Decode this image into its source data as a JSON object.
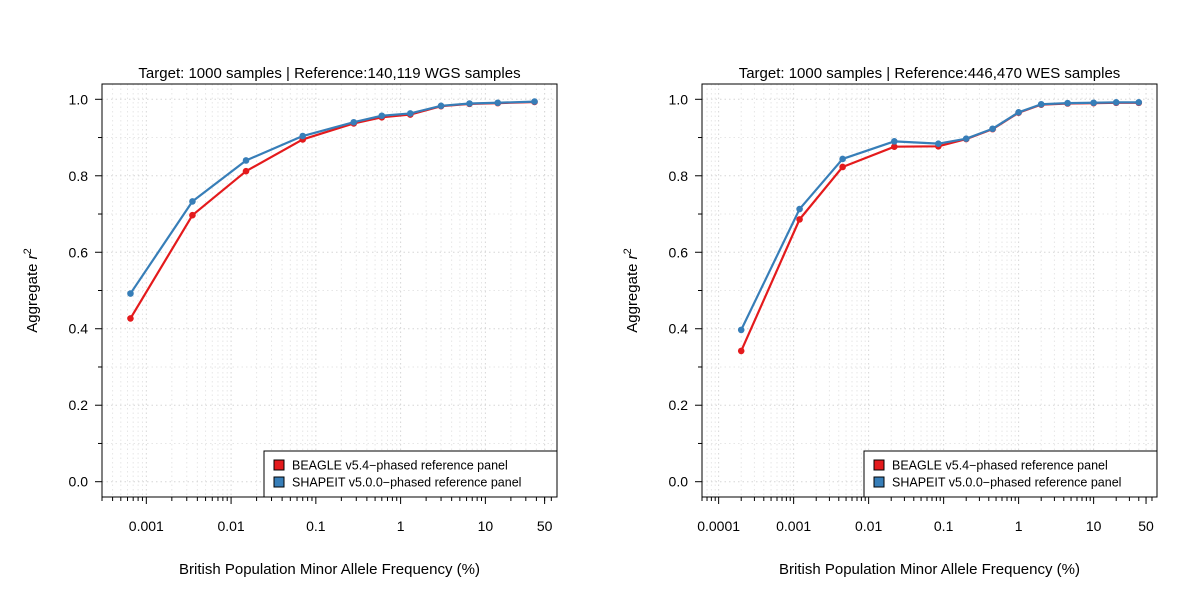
{
  "chart_data": [
    {
      "type": "line",
      "title": "Target: 1000 samples | Reference:140,119 WGS samples",
      "xlabel": "British Population Minor Allele Frequency (%)",
      "ylabel_prefix": "Aggregate ",
      "ylabel_var": "r",
      "ylabel_sup": "2",
      "xscale": "log",
      "xlim": [
        0.0003,
        70
      ],
      "ylim": [
        -0.04,
        1.04
      ],
      "xticks": [
        0.001,
        0.01,
        0.1,
        1,
        10,
        50
      ],
      "xtick_labels": [
        "0.001",
        "0.01",
        "0.1",
        "1",
        "10",
        "50"
      ],
      "yticks": [
        0.0,
        0.2,
        0.4,
        0.6,
        0.8,
        1.0
      ],
      "ytick_labels": [
        "0.0",
        "0.2",
        "0.4",
        "0.6",
        "0.8",
        "1.0"
      ],
      "grid": true,
      "legend_position": "bottom-right",
      "series": [
        {
          "name": "BEAGLE v5.4−phased reference panel",
          "color": "#e41a1c",
          "x": [
            0.00065,
            0.0035,
            0.015,
            0.07,
            0.28,
            0.6,
            1.3,
            3.0,
            6.5,
            14,
            38
          ],
          "y": [
            0.427,
            0.697,
            0.812,
            0.895,
            0.937,
            0.953,
            0.96,
            0.982,
            0.988,
            0.99,
            0.993
          ]
        },
        {
          "name": "SHAPEIT v5.0.0−phased reference panel",
          "color": "#377eb8",
          "x": [
            0.00065,
            0.0035,
            0.015,
            0.07,
            0.28,
            0.6,
            1.3,
            3.0,
            6.5,
            14,
            38
          ],
          "y": [
            0.492,
            0.733,
            0.84,
            0.904,
            0.94,
            0.957,
            0.963,
            0.983,
            0.989,
            0.991,
            0.994
          ]
        }
      ]
    },
    {
      "type": "line",
      "title": "Target: 1000 samples | Reference:446,470 WES samples",
      "xlabel": "British Population Minor Allele Frequency (%)",
      "ylabel_prefix": "Aggregate ",
      "ylabel_var": "r",
      "ylabel_sup": "2",
      "xscale": "log",
      "xlim": [
        6e-05,
        70
      ],
      "ylim": [
        -0.04,
        1.04
      ],
      "xticks": [
        0.0001,
        0.001,
        0.01,
        0.1,
        1,
        10,
        50
      ],
      "xtick_labels": [
        "0.0001",
        "0.001",
        "0.01",
        "0.1",
        "1",
        "10",
        "50"
      ],
      "yticks": [
        0.0,
        0.2,
        0.4,
        0.6,
        0.8,
        1.0
      ],
      "ytick_labels": [
        "0.0",
        "0.2",
        "0.4",
        "0.6",
        "0.8",
        "1.0"
      ],
      "grid": true,
      "legend_position": "bottom-right",
      "series": [
        {
          "name": "BEAGLE v5.4−phased reference panel",
          "color": "#e41a1c",
          "x": [
            0.0002,
            0.0012,
            0.0045,
            0.022,
            0.085,
            0.2,
            0.45,
            1.0,
            2.0,
            4.5,
            10,
            20,
            40
          ],
          "y": [
            0.342,
            0.686,
            0.823,
            0.876,
            0.877,
            0.896,
            0.922,
            0.965,
            0.986,
            0.989,
            0.99,
            0.991,
            0.991
          ]
        },
        {
          "name": "SHAPEIT v5.0.0−phased reference panel",
          "color": "#377eb8",
          "x": [
            0.0002,
            0.0012,
            0.0045,
            0.022,
            0.085,
            0.2,
            0.45,
            1.0,
            2.0,
            4.5,
            10,
            20,
            40
          ],
          "y": [
            0.397,
            0.713,
            0.844,
            0.89,
            0.884,
            0.897,
            0.923,
            0.966,
            0.987,
            0.99,
            0.991,
            0.992,
            0.992
          ]
        }
      ]
    }
  ]
}
